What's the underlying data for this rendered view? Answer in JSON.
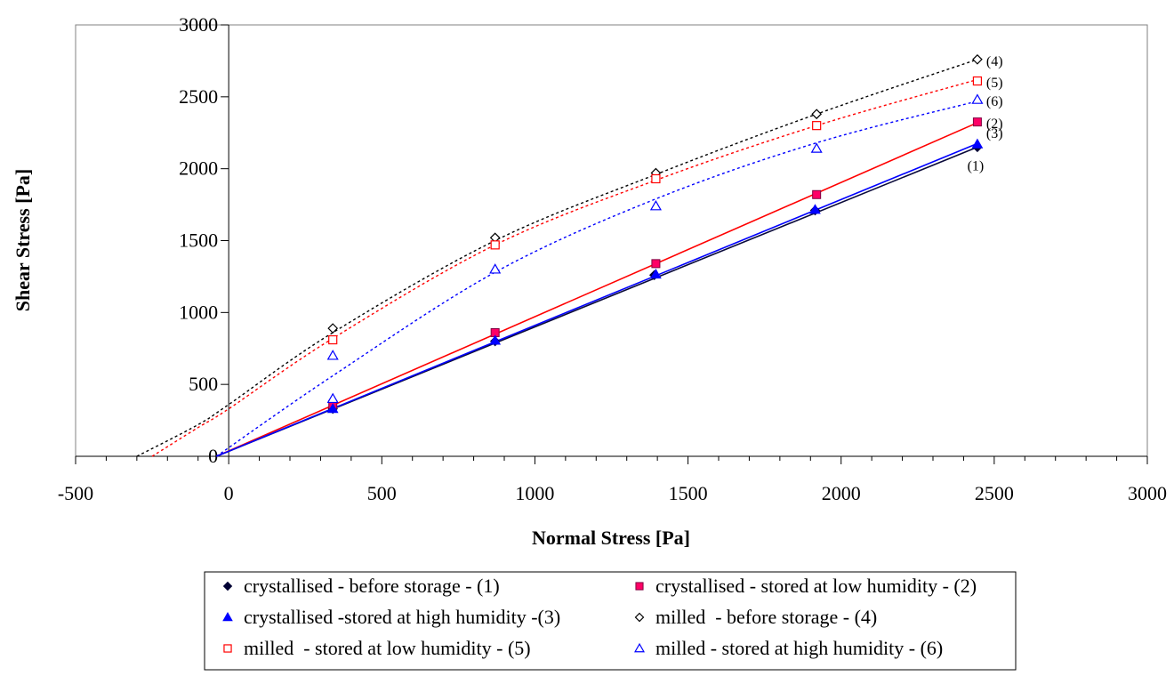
{
  "chart_data": {
    "type": "scatter",
    "title": "",
    "xlabel": "Normal Stress [Pa]",
    "ylabel": "Shear Stress [Pa]",
    "xlim": [
      -500,
      3000
    ],
    "ylim": [
      0,
      3000
    ],
    "xticks": [
      -500,
      0,
      500,
      1000,
      1500,
      2000,
      2500,
      3000
    ],
    "yticks": [
      0,
      500,
      1000,
      1500,
      2000,
      2500,
      3000
    ],
    "x_minor_step": 100,
    "grid": false,
    "legend_position": "bottom",
    "series": [
      {
        "name": "crystallised - before storage - (1)",
        "label": "(1)",
        "marker": "diamond-filled",
        "color": "#000033",
        "points": [
          [
            340,
            330
          ],
          [
            870,
            800
          ],
          [
            1390,
            1260
          ],
          [
            1915,
            1710
          ],
          [
            2445,
            2150
          ]
        ],
        "trend": {
          "style": "solid",
          "color": "#0a0a3a",
          "points": [
            [
              -40,
              0
            ],
            [
              2445,
              2150
            ]
          ]
        }
      },
      {
        "name": "crystallised - stored at low humidity - (2)",
        "label": "(2)",
        "marker": "square-filled",
        "color": "#ff0066",
        "points": [
          [
            340,
            360
          ],
          [
            870,
            860
          ],
          [
            1395,
            1340
          ],
          [
            1920,
            1820
          ],
          [
            2445,
            2325
          ]
        ],
        "trend": {
          "style": "solid",
          "color": "#ff0000",
          "points": [
            [
              -40,
              0
            ],
            [
              2445,
              2320
            ]
          ]
        }
      },
      {
        "name": "crystallised -stored at high humidity -(3)",
        "label": "(3)",
        "marker": "triangle-filled",
        "color": "#0000ff",
        "points": [
          [
            340,
            330
          ],
          [
            870,
            805
          ],
          [
            1395,
            1265
          ],
          [
            1915,
            1715
          ],
          [
            2445,
            2170
          ]
        ],
        "trend": {
          "style": "solid",
          "color": "#0000ff",
          "points": [
            [
              -40,
              0
            ],
            [
              2445,
              2175
            ]
          ]
        }
      },
      {
        "name": "milled  - before storage - (4)",
        "label": "(4)",
        "marker": "diamond-open",
        "color": "#000000",
        "points": [
          [
            340,
            890
          ],
          [
            870,
            1520
          ],
          [
            1395,
            1970
          ],
          [
            1920,
            2380
          ],
          [
            2445,
            2760
          ]
        ],
        "trend": {
          "style": "dotted",
          "color": "#000000",
          "points": [
            [
              -300,
              0
            ],
            [
              -100,
              220
            ],
            [
              0,
              360
            ],
            [
              340,
              860
            ],
            [
              870,
              1500
            ],
            [
              1395,
              1960
            ],
            [
              1920,
              2380
            ],
            [
              2445,
              2760
            ]
          ]
        }
      },
      {
        "name": "milled  - stored at low humidity - (5)",
        "label": "(5)",
        "marker": "square-open",
        "color": "#ff0000",
        "points": [
          [
            340,
            810
          ],
          [
            870,
            1470
          ],
          [
            1395,
            1930
          ],
          [
            1920,
            2300
          ],
          [
            2445,
            2610
          ]
        ],
        "trend": {
          "style": "dotted",
          "color": "#ff0000",
          "points": [
            [
              -250,
              0
            ],
            [
              -100,
              200
            ],
            [
              0,
              330
            ],
            [
              340,
              820
            ],
            [
              870,
              1470
            ],
            [
              1395,
              1920
            ],
            [
              1920,
              2300
            ],
            [
              2445,
              2620
            ]
          ]
        }
      },
      {
        "name": "milled - stored at high humidity - (6)",
        "label": "(6)",
        "marker": "triangle-open",
        "color": "#0000ff",
        "points": [
          [
            340,
            700
          ],
          [
            340,
            400
          ],
          [
            870,
            1300
          ],
          [
            1395,
            1740
          ],
          [
            1920,
            2140
          ],
          [
            2445,
            2480
          ]
        ],
        "trend": {
          "style": "dotted",
          "color": "#0000ff",
          "points": [
            [
              -40,
              0
            ],
            [
              340,
              560
            ],
            [
              870,
              1280
            ],
            [
              1395,
              1790
            ],
            [
              1920,
              2180
            ],
            [
              2445,
              2470
            ]
          ]
        }
      }
    ]
  }
}
